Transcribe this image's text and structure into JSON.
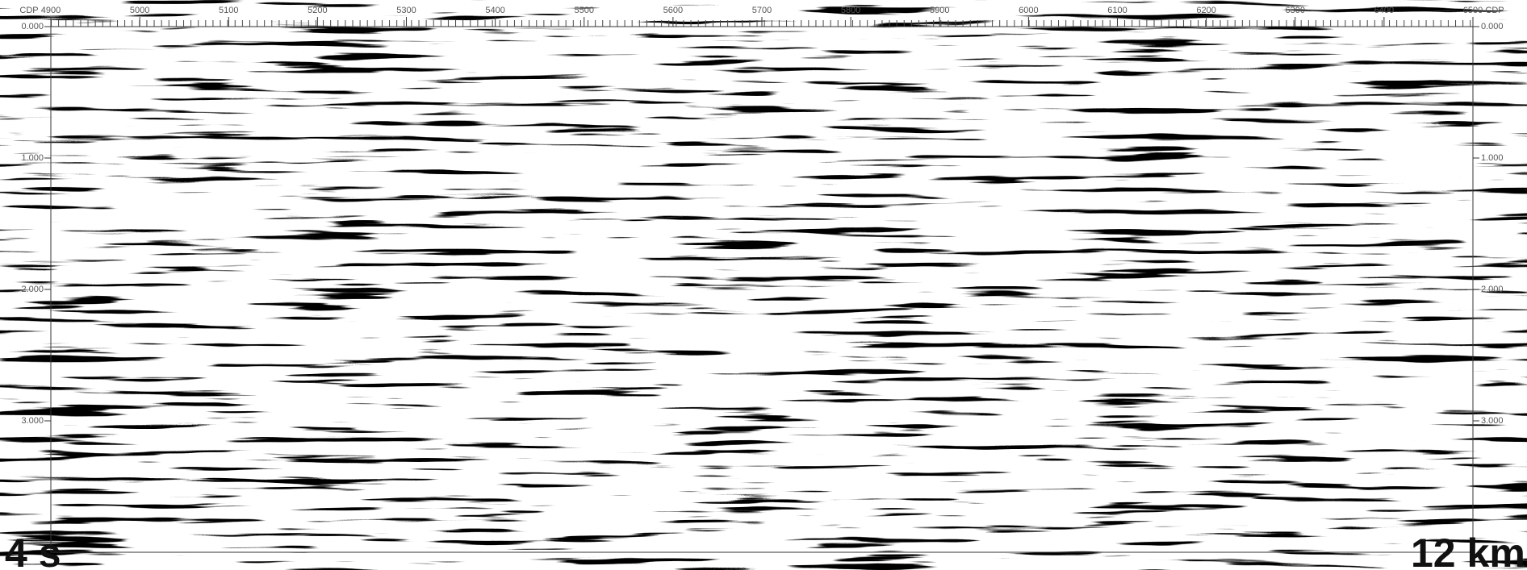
{
  "chart_data": {
    "type": "seismic-section",
    "x_label": "CDP",
    "xlim": [
      4900,
      6500
    ],
    "xticks": [
      4900,
      5000,
      5100,
      5200,
      5300,
      5400,
      5500,
      5600,
      5700,
      5800,
      5900,
      6000,
      6100,
      6200,
      6300,
      6400,
      6500
    ],
    "ylim": [
      0,
      4
    ],
    "yticks": [
      {
        "value": 0,
        "label": "0.000"
      },
      {
        "value": 1,
        "label": "1.000"
      },
      {
        "value": 2,
        "label": "2.000"
      },
      {
        "value": 3,
        "label": "3.000"
      }
    ],
    "time_scale_label": "4 s",
    "distance_scale_label": "12 km"
  }
}
